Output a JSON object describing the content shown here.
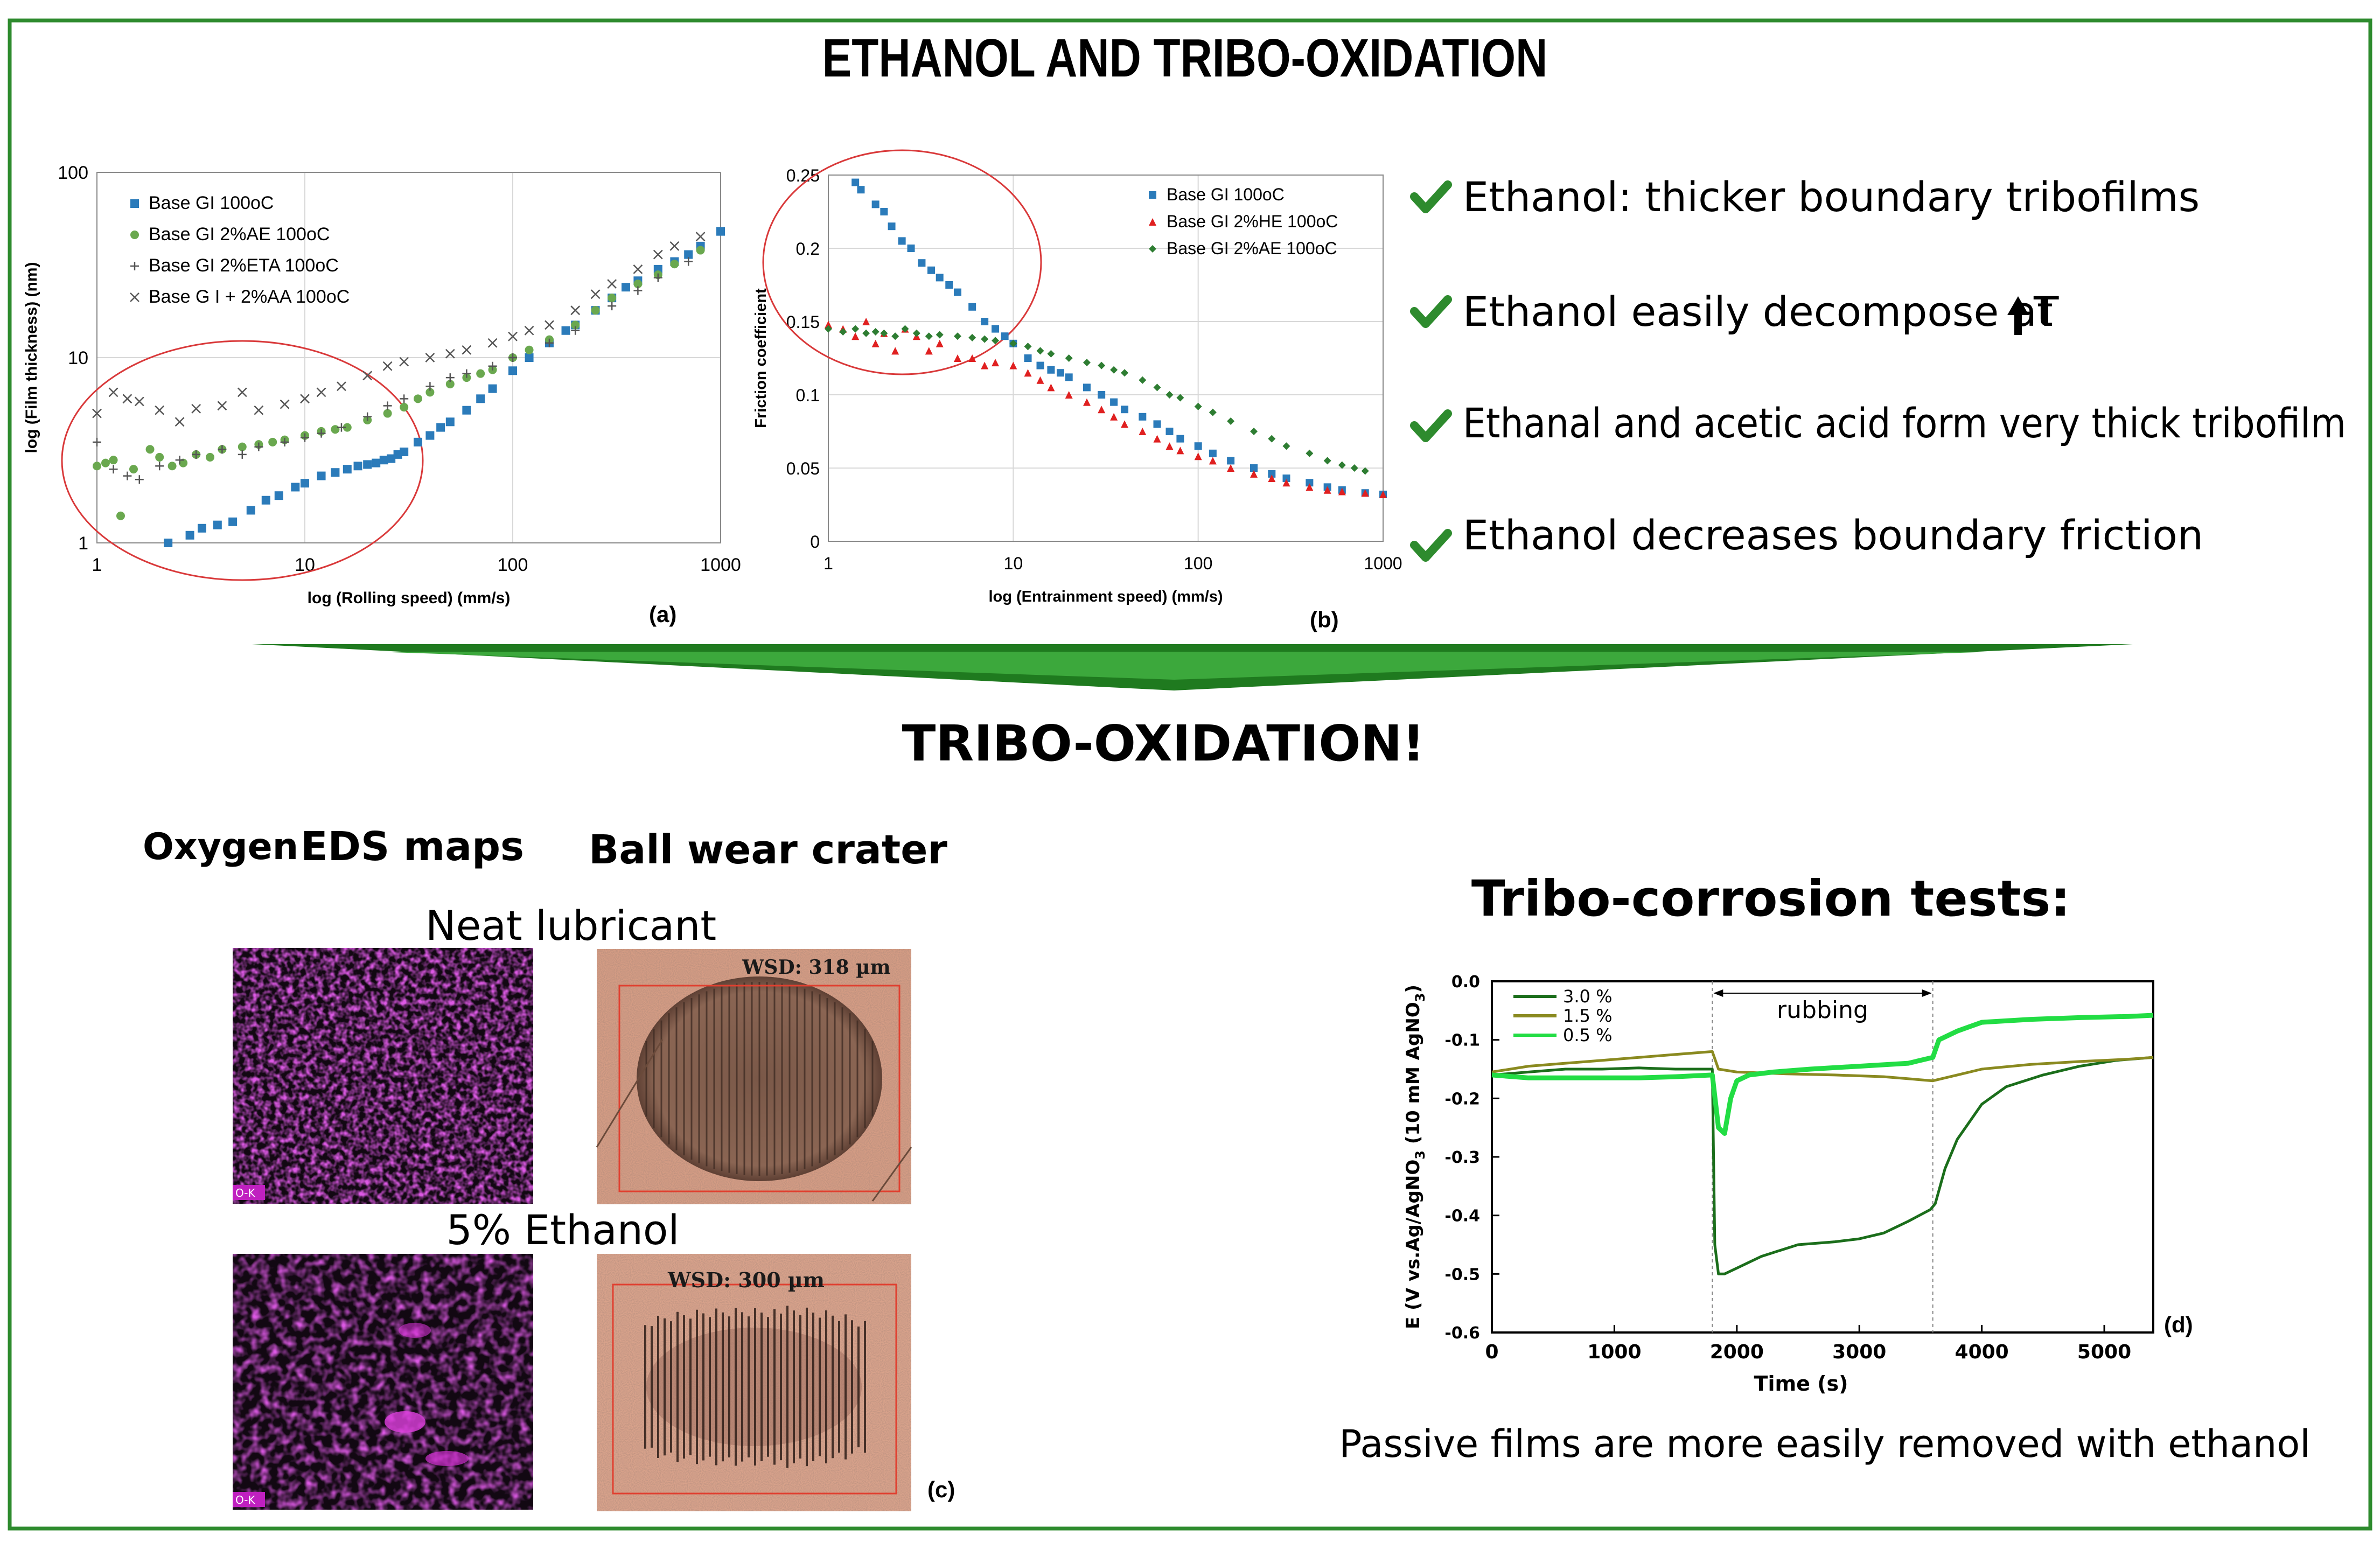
{
  "title": "ETHANOL AND TRIBO-OXIDATION",
  "subtitle": "TRIBO-OXIDATION!",
  "colors": {
    "frame": "#2e8b2e",
    "check": "#2e8b2e",
    "arrow": "#1f7a1f",
    "blue": "#2b7bba",
    "green_marker": "#6aa84f",
    "red_marker": "#e02020",
    "dark_green": "#2e7d32",
    "ellipse": "#d9393a",
    "dark_line": "#1b6e1b",
    "olive_line": "#8a8a20",
    "bright_line": "#22dd44",
    "magenta": "#a020a0",
    "crater": "#c8907a"
  },
  "bullets": [
    {
      "text": "Ethanol: thicker boundary tribofilms"
    },
    {
      "text": "Ethanol easily decompose at ",
      "suffix": "T",
      "icon": "up-arrow-icon"
    },
    {
      "text": "Ethanal and acetic acid form very thick tribofilm"
    },
    {
      "text": "Ethanol decreases boundary friction"
    }
  ],
  "panel_c": {
    "col1_label_a": "Oxygen",
    "col1_label_b": "EDS maps",
    "col2_label": "Ball wear crater",
    "row1_label": "Neat lubricant",
    "row2_label": "5% Ethanol",
    "eds_tag": "O-K",
    "wsd1": "WSD: 318 µm",
    "wsd2": "WSD: 300 µm",
    "label": "(c)"
  },
  "panel_d": {
    "heading": "Tribo-corrosion tests:",
    "caption": "Passive films are more easily removed with ethanol"
  },
  "chart_data": [
    {
      "type": "scatter",
      "id": "a",
      "label": "(a)",
      "xlabel": "log (Rolling speed) (mm/s)",
      "ylabel": "log (Film thickness) (nm)",
      "xscale": "log",
      "yscale": "log",
      "xlim": [
        1,
        1000
      ],
      "ylim": [
        1,
        100
      ],
      "xticks": [
        1,
        10,
        100,
        1000
      ],
      "yticks": [
        1,
        10,
        100
      ],
      "xticklabels": [
        "1",
        "10",
        "100",
        "1000"
      ],
      "yticklabels": [
        "1",
        "10",
        "100"
      ],
      "legend_position": "top-left",
      "series": [
        {
          "name": "Base GI 100oC",
          "marker": "square",
          "color": "#2b7bba",
          "x": [
            2.2,
            2.8,
            3.2,
            3.8,
            4.5,
            5.5,
            6.5,
            7.5,
            9,
            10,
            12,
            14,
            16,
            18,
            20,
            22,
            24,
            26,
            28,
            30,
            35,
            40,
            45,
            50,
            60,
            70,
            80,
            100,
            120,
            150,
            180,
            200,
            250,
            300,
            350,
            400,
            500,
            600,
            700,
            800,
            1000
          ],
          "y": [
            1.0,
            1.1,
            1.2,
            1.25,
            1.3,
            1.5,
            1.7,
            1.8,
            2.0,
            2.1,
            2.3,
            2.4,
            2.5,
            2.6,
            2.65,
            2.7,
            2.8,
            2.85,
            3.0,
            3.1,
            3.5,
            3.8,
            4.2,
            4.5,
            5.2,
            6.0,
            6.8,
            8.5,
            10,
            12,
            14,
            15,
            18,
            21,
            24,
            26,
            30,
            33,
            36,
            40,
            48
          ]
        },
        {
          "name": "Base GI 2%AE 100oC",
          "marker": "circle",
          "color": "#6aa84f",
          "x": [
            1,
            1.1,
            1.2,
            1.3,
            1.5,
            1.8,
            2.0,
            2.3,
            2.6,
            3.0,
            3.5,
            4.0,
            5.0,
            6.0,
            7.0,
            8.0,
            10,
            12,
            14,
            16,
            20,
            25,
            30,
            35,
            40,
            50,
            60,
            70,
            80,
            100,
            120,
            150,
            200,
            250,
            300,
            400,
            500,
            600,
            800
          ],
          "y": [
            2.6,
            2.7,
            2.8,
            1.4,
            2.5,
            3.2,
            2.9,
            2.6,
            2.7,
            3.0,
            2.9,
            3.2,
            3.3,
            3.4,
            3.5,
            3.6,
            3.8,
            4.0,
            4.1,
            4.2,
            4.6,
            5.0,
            5.4,
            6.0,
            6.5,
            7.2,
            7.8,
            8.2,
            8.6,
            10,
            11,
            12.5,
            15,
            18,
            21,
            25,
            28,
            32,
            38
          ]
        },
        {
          "name": "Base GI 2%ETA 100oC",
          "marker": "plus",
          "color": "#555555",
          "x": [
            1,
            1.2,
            1.4,
            1.6,
            2.0,
            2.5,
            3.0,
            4.0,
            5.0,
            6.0,
            8.0,
            10,
            12,
            15,
            20,
            25,
            30,
            40,
            50,
            60,
            80,
            100,
            150,
            200,
            300,
            400,
            500,
            700
          ],
          "y": [
            3.5,
            2.5,
            2.3,
            2.2,
            2.6,
            2.8,
            3.0,
            3.2,
            3.0,
            3.3,
            3.5,
            3.7,
            3.9,
            4.2,
            4.8,
            5.5,
            6.0,
            7.0,
            7.8,
            8.2,
            9.0,
            10,
            12,
            14,
            19,
            23,
            27,
            33
          ]
        },
        {
          "name": "Base G I + 2%AA 100oC",
          "marker": "x",
          "color": "#555555",
          "x": [
            1,
            1.2,
            1.4,
            1.6,
            2.0,
            2.5,
            3.0,
            4.0,
            5.0,
            6.0,
            8.0,
            10,
            12,
            15,
            20,
            25,
            30,
            40,
            50,
            60,
            80,
            100,
            120,
            150,
            200,
            250,
            300,
            400,
            500,
            600,
            800
          ],
          "y": [
            5.0,
            6.5,
            6.0,
            5.8,
            5.2,
            4.5,
            5.3,
            5.5,
            6.5,
            5.2,
            5.6,
            6.0,
            6.5,
            7.0,
            8.0,
            9.0,
            9.5,
            10,
            10.5,
            11,
            12,
            13,
            14,
            15,
            18,
            22,
            25,
            30,
            36,
            40,
            45
          ]
        }
      ],
      "annotation": "red ellipse around low-speed region"
    },
    {
      "type": "scatter",
      "id": "b",
      "label": "(b)",
      "xlabel": "log (Entrainment speed) (mm/s)",
      "ylabel": "Friction coefficient",
      "xscale": "log",
      "yscale": "linear",
      "xlim": [
        1,
        1000
      ],
      "ylim": [
        0,
        0.25
      ],
      "xticks": [
        1,
        10,
        100,
        1000
      ],
      "yticks": [
        0,
        0.05,
        0.1,
        0.15,
        0.2,
        0.25
      ],
      "xticklabels": [
        "1",
        "10",
        "100",
        "1000"
      ],
      "yticklabels": [
        "0",
        "0.05",
        "0.1",
        "0.15",
        "0.2",
        "0.25"
      ],
      "legend_position": "top-right",
      "series": [
        {
          "name": "Base GI 100oC",
          "marker": "square",
          "color": "#2b7bba",
          "x": [
            1.4,
            1.5,
            1.8,
            2.0,
            2.2,
            2.5,
            2.8,
            3.2,
            3.6,
            4.0,
            4.5,
            5.0,
            6.0,
            7.0,
            8.0,
            9.0,
            10,
            12,
            14,
            16,
            18,
            20,
            25,
            30,
            35,
            40,
            50,
            60,
            70,
            80,
            100,
            120,
            150,
            200,
            250,
            300,
            400,
            500,
            600,
            800,
            1000
          ],
          "y": [
            0.245,
            0.24,
            0.23,
            0.225,
            0.215,
            0.205,
            0.2,
            0.19,
            0.185,
            0.18,
            0.175,
            0.17,
            0.16,
            0.15,
            0.145,
            0.14,
            0.135,
            0.125,
            0.12,
            0.117,
            0.115,
            0.112,
            0.105,
            0.1,
            0.095,
            0.09,
            0.085,
            0.08,
            0.075,
            0.07,
            0.065,
            0.06,
            0.055,
            0.05,
            0.046,
            0.043,
            0.04,
            0.037,
            0.035,
            0.033,
            0.032
          ]
        },
        {
          "name": "Base GI 2%HE 100oC",
          "marker": "triangle",
          "color": "#e02020",
          "x": [
            1,
            1.2,
            1.4,
            1.6,
            1.8,
            2.0,
            2.3,
            2.6,
            3.0,
            3.5,
            4.0,
            5.0,
            6.0,
            7.0,
            8.0,
            10,
            12,
            14,
            16,
            20,
            25,
            30,
            35,
            40,
            50,
            60,
            70,
            80,
            100,
            120,
            150,
            200,
            250,
            300,
            400,
            500,
            600,
            800,
            1000
          ],
          "y": [
            0.148,
            0.145,
            0.14,
            0.15,
            0.135,
            0.142,
            0.13,
            0.145,
            0.14,
            0.13,
            0.135,
            0.125,
            0.125,
            0.12,
            0.122,
            0.12,
            0.115,
            0.11,
            0.105,
            0.1,
            0.095,
            0.09,
            0.085,
            0.08,
            0.075,
            0.07,
            0.065,
            0.062,
            0.058,
            0.055,
            0.05,
            0.046,
            0.043,
            0.04,
            0.037,
            0.035,
            0.034,
            0.033,
            0.032
          ]
        },
        {
          "name": "Base GI 2%AE 100oC",
          "marker": "diamond",
          "color": "#2e7d32",
          "x": [
            1,
            1.2,
            1.4,
            1.6,
            1.8,
            2.0,
            2.3,
            2.6,
            3.0,
            3.5,
            4.0,
            5.0,
            6.0,
            7.0,
            8.0,
            10,
            12,
            14,
            16,
            20,
            25,
            30,
            35,
            40,
            50,
            60,
            70,
            80,
            100,
            120,
            150,
            200,
            250,
            300,
            400,
            500,
            600,
            700,
            800
          ],
          "y": [
            0.145,
            0.143,
            0.145,
            0.142,
            0.143,
            0.142,
            0.14,
            0.145,
            0.142,
            0.14,
            0.141,
            0.14,
            0.139,
            0.138,
            0.137,
            0.135,
            0.133,
            0.13,
            0.128,
            0.125,
            0.122,
            0.12,
            0.117,
            0.115,
            0.11,
            0.105,
            0.1,
            0.098,
            0.092,
            0.088,
            0.082,
            0.075,
            0.07,
            0.065,
            0.06,
            0.055,
            0.052,
            0.05,
            0.048
          ]
        }
      ],
      "annotation": "red ellipse around low-speed region"
    },
    {
      "type": "line",
      "id": "d",
      "label": "(d)",
      "xlabel": "Time (s)",
      "ylabel": "E (V vs.Ag/AgNO3 (10 mM AgNO3)",
      "ylabel_parts": {
        "main": "E (V vs.Ag/AgNO",
        "sub1": "3",
        "mid": " (10 mM AgNO",
        "sub2": "3",
        "end": ")"
      },
      "xlim": [
        0,
        5400
      ],
      "ylim": [
        -0.6,
        0.0
      ],
      "xticks": [
        0,
        1000,
        2000,
        3000,
        4000,
        5000
      ],
      "yticks": [
        0.0,
        -0.1,
        -0.2,
        -0.3,
        -0.4,
        -0.5,
        -0.6
      ],
      "xticklabels": [
        "0",
        "1000",
        "2000",
        "3000",
        "4000",
        "5000"
      ],
      "yticklabels": [
        "0.0",
        "-0.1",
        "-0.2",
        "-0.3",
        "-0.4",
        "-0.5",
        "-0.6"
      ],
      "region": {
        "label": "rubbing",
        "start": 1800,
        "end": 3600
      },
      "legend_position": "top-left",
      "series": [
        {
          "name": "3.0 %",
          "color": "#1b6e1b",
          "x": [
            0,
            300,
            600,
            900,
            1200,
            1500,
            1800,
            1820,
            1850,
            1900,
            2000,
            2200,
            2500,
            2800,
            3000,
            3200,
            3400,
            3580,
            3620,
            3700,
            3800,
            3900,
            4000,
            4200,
            4500,
            4800,
            5100,
            5400
          ],
          "y": [
            -0.16,
            -0.155,
            -0.15,
            -0.15,
            -0.148,
            -0.15,
            -0.15,
            -0.45,
            -0.5,
            -0.5,
            -0.49,
            -0.47,
            -0.45,
            -0.445,
            -0.44,
            -0.43,
            -0.41,
            -0.39,
            -0.38,
            -0.32,
            -0.27,
            -0.24,
            -0.21,
            -0.18,
            -0.16,
            -0.145,
            -0.135,
            -0.13
          ]
        },
        {
          "name": "1.5 %",
          "color": "#8a8a20",
          "x": [
            0,
            300,
            600,
            900,
            1200,
            1500,
            1800,
            1850,
            2000,
            2400,
            2800,
            3200,
            3600,
            3800,
            4000,
            4400,
            4800,
            5200,
            5400
          ],
          "y": [
            -0.155,
            -0.145,
            -0.14,
            -0.135,
            -0.13,
            -0.125,
            -0.12,
            -0.15,
            -0.155,
            -0.158,
            -0.16,
            -0.163,
            -0.17,
            -0.16,
            -0.15,
            -0.142,
            -0.137,
            -0.133,
            -0.13
          ]
        },
        {
          "name": "0.5 %",
          "color": "#22dd44",
          "x": [
            0,
            300,
            600,
            900,
            1200,
            1500,
            1800,
            1850,
            1900,
            1950,
            2000,
            2100,
            2300,
            2600,
            3000,
            3400,
            3600,
            3650,
            3800,
            4000,
            4400,
            4800,
            5200,
            5400
          ],
          "y": [
            -0.16,
            -0.165,
            -0.165,
            -0.165,
            -0.165,
            -0.163,
            -0.16,
            -0.25,
            -0.26,
            -0.2,
            -0.17,
            -0.16,
            -0.155,
            -0.15,
            -0.145,
            -0.14,
            -0.13,
            -0.1,
            -0.085,
            -0.07,
            -0.065,
            -0.062,
            -0.06,
            -0.058
          ]
        }
      ]
    }
  ]
}
